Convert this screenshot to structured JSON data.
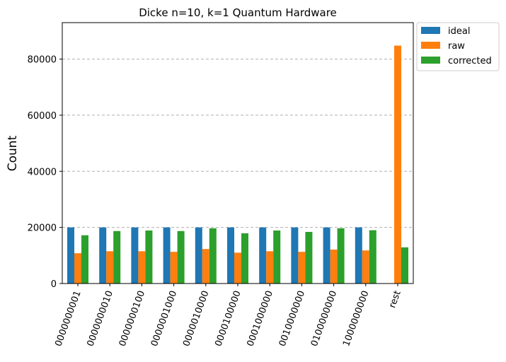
{
  "chart_data": {
    "type": "bar",
    "title": "Dicke n=10, k=1 Quantum Hardware",
    "xlabel": "",
    "ylabel": "Count",
    "ylim": [
      0,
      93000
    ],
    "yticks": [
      0,
      20000,
      40000,
      60000,
      80000
    ],
    "grid": "y-dashed",
    "legend_position": "outside-top-right",
    "categories": [
      "0000000001",
      "0000000010",
      "0000000100",
      "0000001000",
      "0000010000",
      "0000100000",
      "0001000000",
      "0010000000",
      "0100000000",
      "1000000000",
      "rest"
    ],
    "series": [
      {
        "name": "ideal",
        "color": "#1f77b4",
        "values": [
          20000,
          20000,
          20000,
          20000,
          20000,
          20000,
          20000,
          20000,
          20000,
          20000,
          0
        ]
      },
      {
        "name": "raw",
        "color": "#ff7f0e",
        "values": [
          10800,
          11500,
          11500,
          11300,
          12300,
          11000,
          11500,
          11300,
          12100,
          11800,
          84800
        ]
      },
      {
        "name": "corrected",
        "color": "#2ca02c",
        "values": [
          17200,
          18700,
          18900,
          18700,
          19700,
          17900,
          18900,
          18400,
          19700,
          19000,
          12900
        ]
      }
    ]
  }
}
